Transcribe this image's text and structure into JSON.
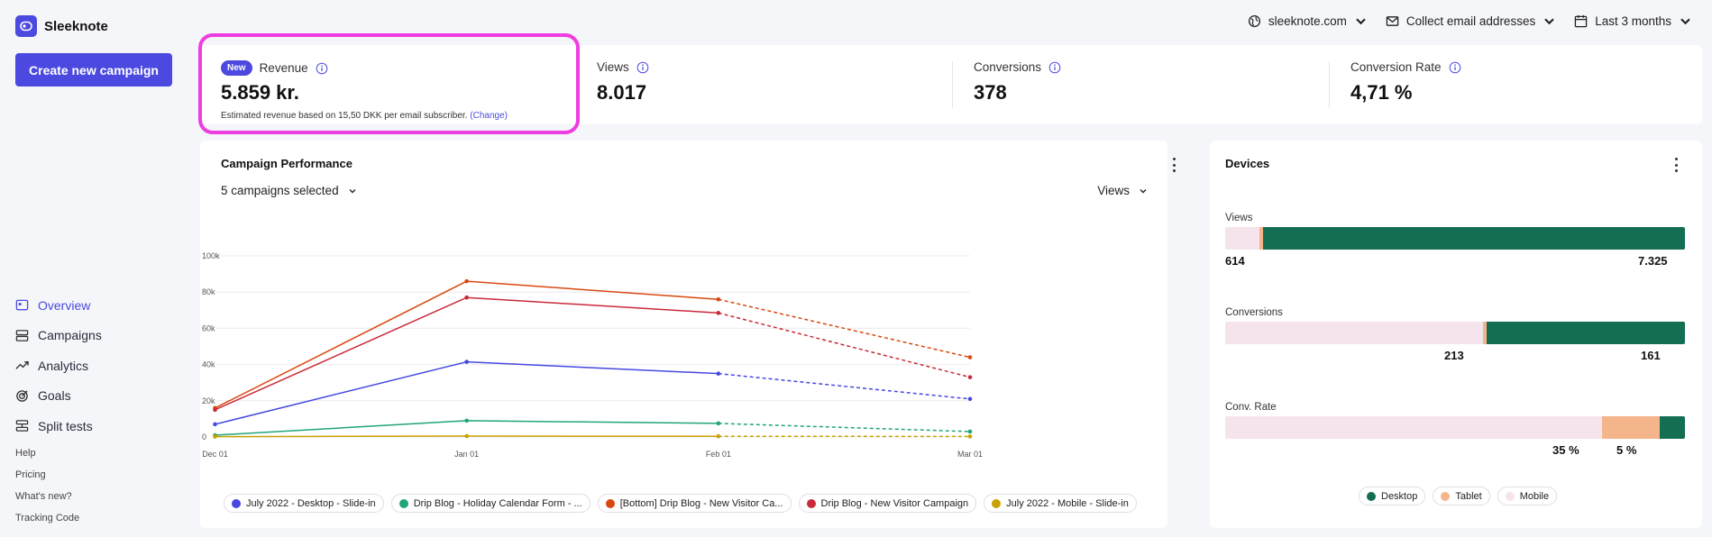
{
  "app": {
    "name": "Sleeknote",
    "create_label": "Create new campaign"
  },
  "nav": [
    {
      "label": "Overview",
      "icon": "overview-icon",
      "active": true
    },
    {
      "label": "Campaigns",
      "icon": "campaigns-icon",
      "active": false
    },
    {
      "label": "Analytics",
      "icon": "analytics-icon",
      "active": false
    },
    {
      "label": "Goals",
      "icon": "goals-icon",
      "active": false
    },
    {
      "label": "Split tests",
      "icon": "split-tests-icon",
      "active": false
    }
  ],
  "links": [
    "Help",
    "Pricing",
    "What's new?",
    "Tracking Code"
  ],
  "topbar": {
    "site": "sleeknote.com",
    "goal": "Collect email addresses",
    "range": "Last 3 months"
  },
  "kpis": {
    "revenue": {
      "badge": "New",
      "label": "Revenue",
      "value": "5.859 kr.",
      "note": "Estimated revenue based on 15,50 DKK per email subscriber.",
      "change": "(Change)"
    },
    "views": {
      "label": "Views",
      "value": "8.017"
    },
    "conversions": {
      "label": "Conversions",
      "value": "378"
    },
    "conversion_rate": {
      "label": "Conversion Rate",
      "value": "4,71 %"
    }
  },
  "performance": {
    "title": "Campaign Performance",
    "campaigns_selected": "5 campaigns selected",
    "metric": "Views"
  },
  "chart_data": {
    "type": "line",
    "x": [
      "Dec 01",
      "Jan 01",
      "Feb 01",
      "Mar 01"
    ],
    "y_ticks": [
      "0",
      "20k",
      "40k",
      "60k",
      "80k",
      "100k"
    ],
    "ylim": [
      0,
      100000
    ],
    "projected_from_index": 2,
    "series": [
      {
        "name": "July 2022 - Desktop - Slide-in",
        "color": "#4747e2",
        "values": [
          7000,
          41500,
          35000,
          21000
        ]
      },
      {
        "name": "Drip Blog - Holiday Calendar Form - ...",
        "color": "#20a57a",
        "values": [
          1000,
          9000,
          7500,
          3000
        ]
      },
      {
        "name": "[Bottom] Drip Blog - New Visitor Ca...",
        "color": "#d9480f",
        "values": [
          16000,
          86000,
          76000,
          44000
        ]
      },
      {
        "name": "Drip Blog - New Visitor Campaign",
        "color": "#c92a3a",
        "values": [
          15000,
          77000,
          68500,
          33000
        ]
      },
      {
        "name": "July 2022 - Mobile - Slide-in",
        "color": "#c9a100",
        "values": [
          200,
          500,
          400,
          300
        ]
      }
    ]
  },
  "devices": {
    "title": "Devices",
    "colors": {
      "desktop": "#136e53",
      "tablet": "#f5b58a",
      "mobile": "#f5e4ec"
    },
    "rows": [
      {
        "label": "Views",
        "mobile": 0.075,
        "tablet": 0.008,
        "desktop": 0.917,
        "left_value": "614",
        "right_value": "7.325"
      },
      {
        "label": "Conversions",
        "mobile": 0.56,
        "tablet": 0.008,
        "desktop": 0.432,
        "left_value": "213",
        "right_value": "161"
      },
      {
        "label": "Conv. Rate",
        "mobile": 0.82,
        "tablet": 0.126,
        "desktop": 0.054,
        "left_value": "35 %",
        "right_value": "5 %"
      }
    ],
    "legend": [
      "Desktop",
      "Tablet",
      "Mobile"
    ]
  }
}
